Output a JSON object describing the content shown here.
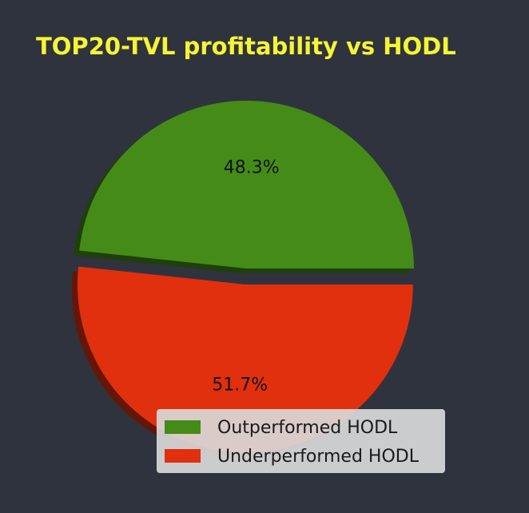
{
  "chart_data": {
    "type": "pie",
    "title": "TOP20-TVL profitability vs HODL",
    "categories": [
      "Outperformed HODL",
      "Underperformed HODL"
    ],
    "values": [
      48.3,
      51.7
    ],
    "value_labels": [
      "48.3%",
      "51.7%"
    ],
    "colors": [
      "#458b18",
      "#e0300e"
    ],
    "exploded": [
      false,
      true
    ],
    "shadow": true,
    "legend_position": "lower-right"
  },
  "colors": {
    "background": "#2f333d",
    "title": "#f5f534",
    "legend_background": "#d9d9d9"
  }
}
